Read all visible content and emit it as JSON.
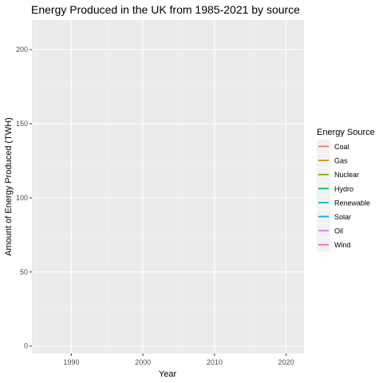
{
  "chart_data": {
    "type": "line",
    "title": "Energy Produced in the UK from 1985-2021 by source",
    "xlabel": "Year",
    "ylabel": "Amount of Energy Produced (TWH)",
    "xlim": [
      1984.5,
      2022.5
    ],
    "ylim": [
      -5,
      220
    ],
    "x_ticks": [
      1990,
      2000,
      2010,
      2020
    ],
    "y_ticks": [
      0,
      50,
      100,
      150,
      200
    ],
    "grid": true,
    "background": "#ebebeb",
    "legend": {
      "title": "Energy Source",
      "position": "right"
    },
    "series": [
      {
        "name": "Coal",
        "color": "#F8766D",
        "values": []
      },
      {
        "name": "Gas",
        "color": "#CD9600",
        "values": []
      },
      {
        "name": "Nuclear",
        "color": "#7CAE00",
        "values": []
      },
      {
        "name": "Hydro",
        "color": "#00BE67",
        "values": []
      },
      {
        "name": "Renewable",
        "color": "#00BFC4",
        "values": []
      },
      {
        "name": "Solar",
        "color": "#00A9FF",
        "values": []
      },
      {
        "name": "Oil",
        "color": "#C77CFF",
        "values": []
      },
      {
        "name": "Wind",
        "color": "#FF61CC",
        "values": []
      }
    ]
  }
}
